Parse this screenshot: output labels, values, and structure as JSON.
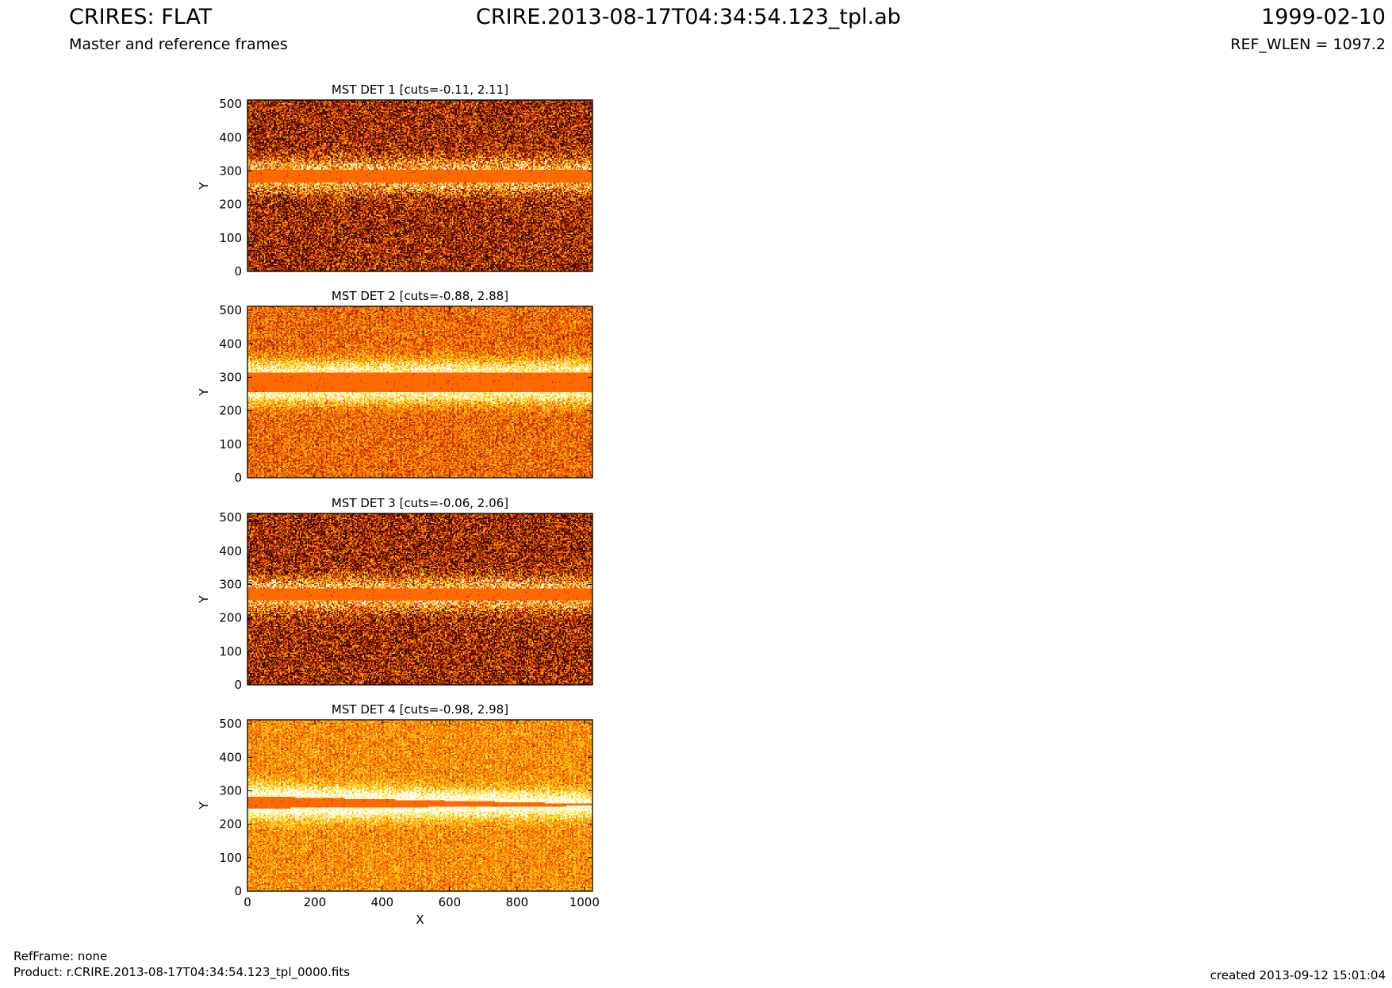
{
  "header": {
    "title": "CRIRES: FLAT",
    "subtitle": "Master and reference frames",
    "filename": "CRIRE.2013-08-17T04:34:54.123_tpl.ab",
    "date": "1999-02-10",
    "ref_wlen": "REF_WLEN = 1097.2"
  },
  "footer": {
    "refframe": "RefFrame: none",
    "product": "Product: r.CRIRE.2013-08-17T04:34:54.123_tpl_0000.fits",
    "created": "created 2013-09-12 15:01:04"
  },
  "colors": {
    "band": "#ff5a00",
    "colormap": [
      "#2a0000",
      "#8a1400",
      "#c93200",
      "#ff6a00",
      "#ffb000",
      "#ffe84a",
      "#ffffff"
    ]
  },
  "chart_data": [
    {
      "type": "heatmap",
      "title": "MST DET 1 [cuts=-0.11, 2.11]",
      "xlabel": "",
      "ylabel": "Y",
      "xlim": [
        0,
        1024
      ],
      "ylim": [
        0,
        512
      ],
      "xticks": [
        0,
        200,
        400,
        600,
        800,
        1000
      ],
      "yticks": [
        0,
        100,
        200,
        300,
        400,
        500
      ],
      "cuts": [
        -0.11,
        2.11
      ],
      "band": {
        "y_center": 285,
        "half_width": 18
      },
      "texture": "dark"
    },
    {
      "type": "heatmap",
      "title": "MST DET 2 [cuts=-0.88, 2.88]",
      "xlabel": "",
      "ylabel": "Y",
      "xlim": [
        0,
        1024
      ],
      "ylim": [
        0,
        512
      ],
      "xticks": [
        0,
        200,
        400,
        600,
        800,
        1000
      ],
      "yticks": [
        0,
        100,
        200,
        300,
        400,
        500
      ],
      "cuts": [
        -0.88,
        2.88
      ],
      "band": {
        "y_center": 285,
        "half_width": 30
      },
      "texture": "medium"
    },
    {
      "type": "heatmap",
      "title": "MST DET 3 [cuts=-0.06, 2.06]",
      "xlabel": "",
      "ylabel": "Y",
      "xlim": [
        0,
        1024
      ],
      "ylim": [
        0,
        512
      ],
      "xticks": [
        0,
        200,
        400,
        600,
        800,
        1000
      ],
      "yticks": [
        0,
        100,
        200,
        300,
        400,
        500
      ],
      "cuts": [
        -0.06,
        2.06
      ],
      "band": {
        "y_center": 270,
        "half_width": 17
      },
      "texture": "dark"
    },
    {
      "type": "heatmap",
      "title": "MST DET 4 [cuts=-0.98, 2.98]",
      "xlabel": "X",
      "ylabel": "Y",
      "xlim": [
        0,
        1024
      ],
      "ylim": [
        0,
        512
      ],
      "xticks": [
        0,
        200,
        400,
        600,
        800,
        1000
      ],
      "yticks": [
        0,
        100,
        200,
        300,
        400,
        500
      ],
      "cuts": [
        -0.98,
        2.98
      ],
      "band": {
        "y_center": 265,
        "half_width": 18,
        "y_center_end": 258,
        "half_width_end": 3
      },
      "texture": "light"
    }
  ]
}
